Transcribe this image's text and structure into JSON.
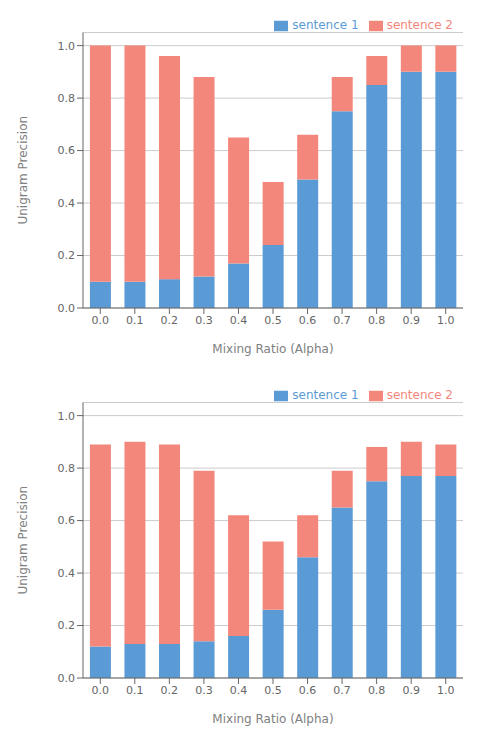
{
  "chart_data": [
    {
      "type": "bar",
      "stacked": true,
      "categories": [
        "0.0",
        "0.1",
        "0.2",
        "0.3",
        "0.4",
        "0.5",
        "0.6",
        "0.7",
        "0.8",
        "0.9",
        "1.0"
      ],
      "series": [
        {
          "name": "sentence 1",
          "color": "#5B9BD5",
          "values": [
            0.1,
            0.1,
            0.11,
            0.12,
            0.17,
            0.24,
            0.49,
            0.75,
            0.85,
            0.9,
            0.9
          ]
        },
        {
          "name": "sentence 2",
          "color": "#F4877B",
          "values": [
            0.9,
            0.9,
            0.85,
            0.76,
            0.48,
            0.24,
            0.17,
            0.13,
            0.11,
            0.1,
            0.1
          ]
        }
      ],
      "x_label": "Mixing Ratio (Alpha)",
      "y_label": "Unigram Precision",
      "ylim": [
        0,
        1.05
      ],
      "yticks": [
        {
          "value": 0,
          "label": "0.0"
        },
        0.2,
        0.4,
        0.6,
        0.8,
        {
          "value": 1,
          "label": "1.0"
        }
      ],
      "grid": true,
      "legend": "upper right"
    },
    {
      "type": "bar",
      "stacked": true,
      "categories": [
        "0.0",
        "0.1",
        "0.2",
        "0.3",
        "0.4",
        "0.5",
        "0.6",
        "0.7",
        "0.8",
        "0.9",
        "1.0"
      ],
      "series": [
        {
          "name": "sentence 1",
          "color": "#5B9BD5",
          "values": [
            0.12,
            0.13,
            0.13,
            0.14,
            0.16,
            0.26,
            0.46,
            0.65,
            0.75,
            0.77,
            0.77
          ]
        },
        {
          "name": "sentence 2",
          "color": "#F4877B",
          "values": [
            0.77,
            0.77,
            0.76,
            0.65,
            0.46,
            0.26,
            0.16,
            0.14,
            0.13,
            0.13,
            0.12
          ]
        }
      ],
      "x_label": "Mixing Ratio (Alpha)",
      "y_label": "Unigram Precision",
      "ylim": [
        0,
        1.05
      ],
      "yticks": [
        {
          "value": 0,
          "label": "0.0"
        },
        0.2,
        0.4,
        0.6,
        0.8,
        {
          "value": 1,
          "label": "1.0"
        }
      ],
      "grid": true,
      "legend": "upper right"
    }
  ]
}
